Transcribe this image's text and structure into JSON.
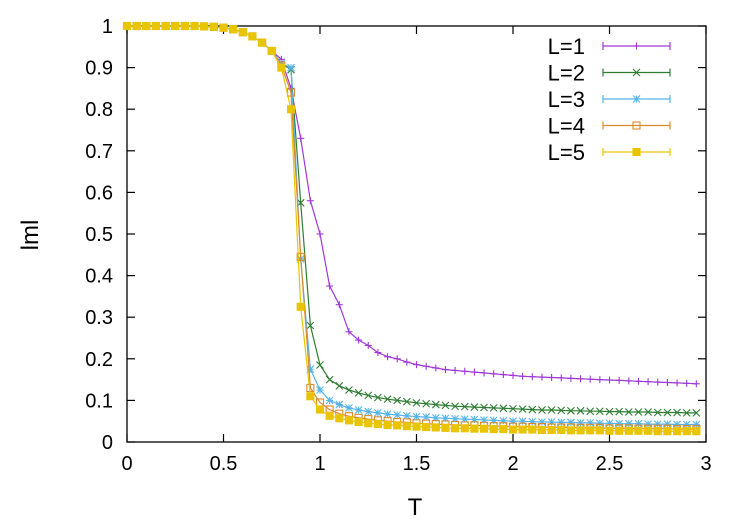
{
  "chart_data": {
    "type": "line",
    "title": "",
    "xlabel": "T",
    "ylabel": "lml",
    "xlim": [
      0,
      3
    ],
    "ylim": [
      0,
      1
    ],
    "xticks": [
      "0",
      "0.5",
      "1",
      "1.5",
      "2",
      "2.5",
      "3"
    ],
    "yticks": [
      "0",
      "0.1",
      "0.2",
      "0.3",
      "0.4",
      "0.5",
      "0.6",
      "0.7",
      "0.8",
      "0.9",
      "1"
    ],
    "grid": false,
    "legend_position": "top-right",
    "series": [
      {
        "name": "L=1",
        "color": "#9f38d6",
        "marker": "plus",
        "x": [
          0,
          0.05,
          0.1,
          0.15,
          0.2,
          0.25,
          0.3,
          0.35,
          0.4,
          0.45,
          0.5,
          0.55,
          0.6,
          0.65,
          0.7,
          0.75,
          0.8,
          0.85,
          0.9,
          0.95,
          1.0,
          1.05,
          1.1,
          1.15,
          1.2,
          1.25,
          1.3,
          1.35,
          1.4,
          1.45,
          1.5,
          1.55,
          1.6,
          1.65,
          1.7,
          1.75,
          1.8,
          1.85,
          1.9,
          1.95,
          2.0,
          2.05,
          2.1,
          2.15,
          2.2,
          2.25,
          2.3,
          2.35,
          2.4,
          2.45,
          2.5,
          2.55,
          2.6,
          2.65,
          2.7,
          2.75,
          2.8,
          2.85,
          2.9,
          2.95
        ],
        "y": [
          1,
          1,
          1,
          1,
          1,
          1,
          1,
          1,
          0.999,
          0.998,
          0.996,
          0.992,
          0.985,
          0.975,
          0.96,
          0.94,
          0.92,
          0.85,
          0.73,
          0.58,
          0.5,
          0.375,
          0.33,
          0.265,
          0.245,
          0.232,
          0.215,
          0.205,
          0.2,
          0.192,
          0.186,
          0.182,
          0.178,
          0.174,
          0.172,
          0.17,
          0.168,
          0.166,
          0.164,
          0.162,
          0.16,
          0.158,
          0.157,
          0.156,
          0.155,
          0.154,
          0.153,
          0.152,
          0.151,
          0.15,
          0.149,
          0.148,
          0.147,
          0.146,
          0.145,
          0.144,
          0.143,
          0.142,
          0.141,
          0.14
        ]
      },
      {
        "name": "L=2",
        "color": "#2e7d32",
        "marker": "cross",
        "x": [
          0,
          0.05,
          0.1,
          0.15,
          0.2,
          0.25,
          0.3,
          0.35,
          0.4,
          0.45,
          0.5,
          0.55,
          0.6,
          0.65,
          0.7,
          0.75,
          0.8,
          0.85,
          0.9,
          0.95,
          1.0,
          1.05,
          1.1,
          1.15,
          1.2,
          1.25,
          1.3,
          1.35,
          1.4,
          1.45,
          1.5,
          1.55,
          1.6,
          1.65,
          1.7,
          1.75,
          1.8,
          1.85,
          1.9,
          1.95,
          2.0,
          2.05,
          2.1,
          2.15,
          2.2,
          2.25,
          2.3,
          2.35,
          2.4,
          2.45,
          2.5,
          2.55,
          2.6,
          2.65,
          2.7,
          2.75,
          2.8,
          2.85,
          2.9,
          2.95
        ],
        "y": [
          1,
          1,
          1,
          1,
          1,
          1,
          1,
          1,
          0.999,
          0.998,
          0.996,
          0.992,
          0.985,
          0.975,
          0.96,
          0.94,
          0.91,
          0.895,
          0.575,
          0.28,
          0.185,
          0.15,
          0.135,
          0.125,
          0.118,
          0.112,
          0.107,
          0.103,
          0.1,
          0.097,
          0.094,
          0.092,
          0.09,
          0.088,
          0.086,
          0.085,
          0.084,
          0.083,
          0.082,
          0.081,
          0.08,
          0.079,
          0.078,
          0.077,
          0.077,
          0.076,
          0.075,
          0.075,
          0.074,
          0.074,
          0.073,
          0.073,
          0.072,
          0.072,
          0.072,
          0.071,
          0.071,
          0.071,
          0.07,
          0.07
        ]
      },
      {
        "name": "L=3",
        "color": "#56b4e9",
        "marker": "asterisk",
        "x": [
          0,
          0.05,
          0.1,
          0.15,
          0.2,
          0.25,
          0.3,
          0.35,
          0.4,
          0.45,
          0.5,
          0.55,
          0.6,
          0.65,
          0.7,
          0.75,
          0.8,
          0.85,
          0.9,
          0.95,
          1.0,
          1.05,
          1.1,
          1.15,
          1.2,
          1.25,
          1.3,
          1.35,
          1.4,
          1.45,
          1.5,
          1.55,
          1.6,
          1.65,
          1.7,
          1.75,
          1.8,
          1.85,
          1.9,
          1.95,
          2.0,
          2.05,
          2.1,
          2.15,
          2.2,
          2.25,
          2.3,
          2.35,
          2.4,
          2.45,
          2.5,
          2.55,
          2.6,
          2.65,
          2.7,
          2.75,
          2.8,
          2.85,
          2.9,
          2.95
        ],
        "y": [
          1,
          1,
          1,
          1,
          1,
          1,
          1,
          1,
          0.999,
          0.998,
          0.996,
          0.992,
          0.985,
          0.975,
          0.96,
          0.94,
          0.91,
          0.9,
          0.44,
          0.175,
          0.125,
          0.1,
          0.09,
          0.082,
          0.077,
          0.073,
          0.07,
          0.067,
          0.065,
          0.063,
          0.061,
          0.06,
          0.058,
          0.057,
          0.056,
          0.055,
          0.054,
          0.053,
          0.052,
          0.051,
          0.05,
          0.05,
          0.049,
          0.048,
          0.048,
          0.047,
          0.047,
          0.046,
          0.046,
          0.045,
          0.045,
          0.044,
          0.044,
          0.044,
          0.043,
          0.043,
          0.043,
          0.042,
          0.042,
          0.042
        ]
      },
      {
        "name": "L=4",
        "color": "#d98b2b",
        "marker": "open-square",
        "x": [
          0,
          0.05,
          0.1,
          0.15,
          0.2,
          0.25,
          0.3,
          0.35,
          0.4,
          0.45,
          0.5,
          0.55,
          0.6,
          0.65,
          0.7,
          0.75,
          0.8,
          0.85,
          0.9,
          0.95,
          1.0,
          1.05,
          1.1,
          1.15,
          1.2,
          1.25,
          1.3,
          1.35,
          1.4,
          1.45,
          1.5,
          1.55,
          1.6,
          1.65,
          1.7,
          1.75,
          1.8,
          1.85,
          1.9,
          1.95,
          2.0,
          2.05,
          2.1,
          2.15,
          2.2,
          2.25,
          2.3,
          2.35,
          2.4,
          2.45,
          2.5,
          2.55,
          2.6,
          2.65,
          2.7,
          2.75,
          2.8,
          2.85,
          2.9,
          2.95
        ],
        "y": [
          1,
          1,
          1,
          1,
          1,
          1,
          1,
          1,
          0.999,
          0.998,
          0.996,
          0.992,
          0.985,
          0.975,
          0.96,
          0.94,
          0.905,
          0.84,
          0.445,
          0.13,
          0.095,
          0.078,
          0.068,
          0.062,
          0.058,
          0.055,
          0.052,
          0.05,
          0.048,
          0.047,
          0.045,
          0.044,
          0.043,
          0.042,
          0.041,
          0.04,
          0.04,
          0.039,
          0.038,
          0.038,
          0.037,
          0.037,
          0.036,
          0.036,
          0.035,
          0.035,
          0.035,
          0.034,
          0.034,
          0.034,
          0.033,
          0.033,
          0.033,
          0.032,
          0.032,
          0.032,
          0.032,
          0.031,
          0.031,
          0.031
        ]
      },
      {
        "name": "L=5",
        "color": "#e9c400",
        "marker": "filled-square",
        "x": [
          0,
          0.05,
          0.1,
          0.15,
          0.2,
          0.25,
          0.3,
          0.35,
          0.4,
          0.45,
          0.5,
          0.55,
          0.6,
          0.65,
          0.7,
          0.75,
          0.8,
          0.85,
          0.9,
          0.95,
          1.0,
          1.05,
          1.1,
          1.15,
          1.2,
          1.25,
          1.3,
          1.35,
          1.4,
          1.45,
          1.5,
          1.55,
          1.6,
          1.65,
          1.7,
          1.75,
          1.8,
          1.85,
          1.9,
          1.95,
          2.0,
          2.05,
          2.1,
          2.15,
          2.2,
          2.25,
          2.3,
          2.35,
          2.4,
          2.45,
          2.5,
          2.55,
          2.6,
          2.65,
          2.7,
          2.75,
          2.8,
          2.85,
          2.9,
          2.95
        ],
        "y": [
          1,
          1,
          1,
          1,
          1,
          1,
          1,
          1,
          0.999,
          0.998,
          0.996,
          0.992,
          0.985,
          0.975,
          0.96,
          0.94,
          0.9,
          0.8,
          0.325,
          0.11,
          0.078,
          0.063,
          0.057,
          0.052,
          0.048,
          0.045,
          0.043,
          0.041,
          0.04,
          0.038,
          0.037,
          0.036,
          0.035,
          0.034,
          0.033,
          0.033,
          0.032,
          0.032,
          0.031,
          0.031,
          0.03,
          0.03,
          0.03,
          0.029,
          0.029,
          0.029,
          0.028,
          0.028,
          0.028,
          0.028,
          0.027,
          0.027,
          0.027,
          0.027,
          0.027,
          0.026,
          0.026,
          0.026,
          0.026,
          0.026
        ]
      }
    ]
  }
}
